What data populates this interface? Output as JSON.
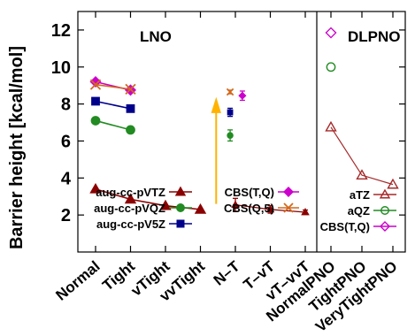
{
  "chart_data": {
    "type": "line",
    "ylabel": "Barrier height [kcal/mol]",
    "ylim": [
      0,
      13
    ],
    "yticks": [
      2,
      4,
      6,
      8,
      10,
      12
    ],
    "grid": false,
    "panels": [
      {
        "title": "LNO",
        "categories": [
          "Normal",
          "Tight",
          "vTight",
          "vvTight",
          "N–T",
          "T–vT",
          "vT–vvT"
        ],
        "legend_position": "bottom-right",
        "series": [
          {
            "name": "aug-cc-pVTZ",
            "color": "#8b0000",
            "marker": "triangle-filled",
            "x": [
              "Normal",
              "Tight",
              "vTight",
              "vvTight"
            ],
            "y": [
              3.4,
              2.85,
              2.5,
              2.3
            ]
          },
          {
            "name": "aug-cc-pVQZ",
            "color": "#228b22",
            "marker": "circle-filled",
            "x": [
              "Normal",
              "Tight"
            ],
            "y": [
              7.1,
              6.6
            ]
          },
          {
            "name": "aug-cc-pV5Z",
            "color": "#00008b",
            "marker": "square-filled",
            "x": [
              "Normal",
              "Tight"
            ],
            "y": [
              8.15,
              7.75
            ]
          },
          {
            "name": "CBS(T,Q)",
            "color": "#cc00cc",
            "marker": "diamond-filled",
            "x": [
              "Normal",
              "Tight"
            ],
            "y": [
              9.2,
              8.75
            ]
          },
          {
            "name": "CBS(Q,5)",
            "color": "#d2691e",
            "marker": "x",
            "x": [
              "Normal",
              "Tight"
            ],
            "y": [
              9.05,
              8.8
            ]
          }
        ],
        "extrapolated": [
          {
            "series": "aug-cc-pVTZ",
            "color": "#8b0000",
            "marker": "triangle-filled",
            "x": [
              "N–T",
              "T–vT",
              "vT–vvT"
            ],
            "y": [
              2.55,
              2.3,
              2.15
            ],
            "err": [
              0.35,
              0.2,
              0.12
            ]
          },
          {
            "series": "CBS(Q,5)",
            "color": "#d2691e",
            "marker": "x",
            "x": [
              "N–T"
            ],
            "y": [
              8.65
            ],
            "err": [
              0.1
            ],
            "offset": -0.15
          },
          {
            "series": "aug-cc-pV5Z",
            "color": "#00008b",
            "marker": "square-filled",
            "x": [
              "N–T"
            ],
            "y": [
              7.55
            ],
            "err": [
              0.22
            ],
            "offset": -0.15
          },
          {
            "series": "aug-cc-pVQZ",
            "color": "#228b22",
            "marker": "circle-filled",
            "x": [
              "N–T"
            ],
            "y": [
              6.3
            ],
            "err": [
              0.3
            ],
            "offset": -0.15
          },
          {
            "series": "CBS(T,Q)",
            "color": "#cc00cc",
            "marker": "diamond-filled",
            "x": [
              "N–T"
            ],
            "y": [
              8.45
            ],
            "err": [
              0.25
            ],
            "offset": 0.2
          }
        ],
        "arrow": {
          "x": "vvTight",
          "offset": 0.45,
          "from": 2.6,
          "to": 8.3,
          "color": "#ffb300"
        }
      },
      {
        "title": "DLPNO",
        "categories": [
          "NormalPNO",
          "TightPNO",
          "VeryTightPNO"
        ],
        "legend_position": "bottom-right",
        "series": [
          {
            "name": "aTZ",
            "color": "#a52a2a",
            "marker": "triangle-open",
            "x": [
              "NormalPNO",
              "TightPNO",
              "VeryTightPNO"
            ],
            "y": [
              6.75,
              4.15,
              3.65
            ]
          },
          {
            "name": "aQZ",
            "color": "#228b22",
            "marker": "circle-open",
            "x": [
              "NormalPNO"
            ],
            "y": [
              10.0
            ]
          },
          {
            "name": "CBS(T,Q)",
            "color": "#cc00cc",
            "marker": "diamond-open",
            "x": [
              "NormalPNO"
            ],
            "y": [
              11.85
            ]
          }
        ]
      }
    ]
  }
}
